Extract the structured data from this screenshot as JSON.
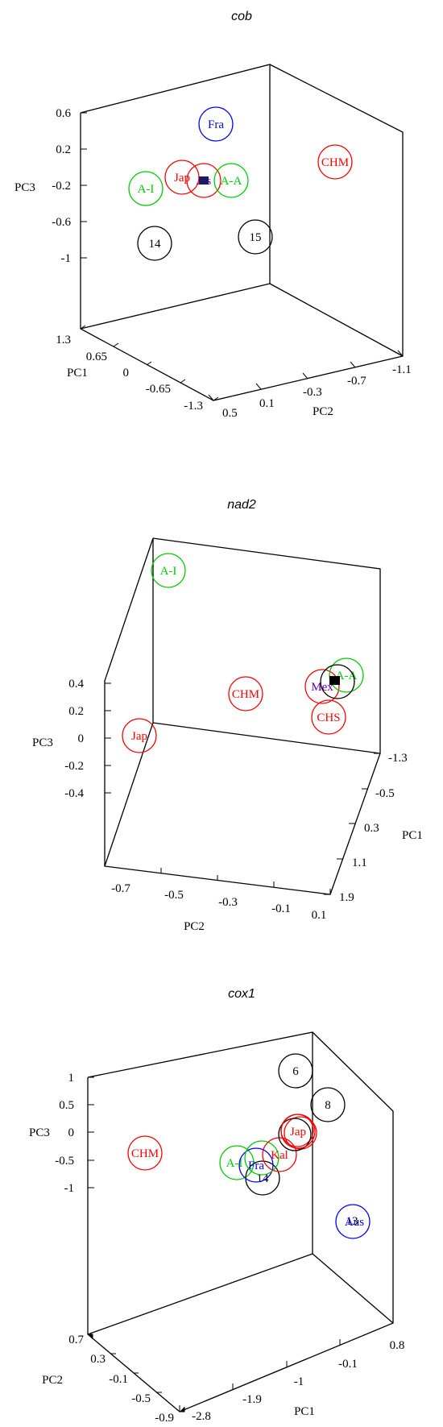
{
  "chart_data": [
    {
      "type": "scatter",
      "title": "cob",
      "xlabel": "PC1",
      "ylabel": "PC2",
      "zlabel": "PC3",
      "axes": {
        "x": {
          "ticks": [
            "1.3",
            "0.65",
            "0",
            "-0.65",
            "-1.3"
          ]
        },
        "y": {
          "ticks": [
            "0.5",
            "0.1",
            "-0.3",
            "-0.7",
            "-1.1"
          ]
        },
        "z": {
          "ticks": [
            "0.6",
            "0.2",
            "-0.2",
            "-0.6",
            "-1"
          ]
        }
      },
      "points": [
        {
          "label": "Fra",
          "color": "#0000ff"
        },
        {
          "label": "CHM",
          "color": "#ff0000"
        },
        {
          "label": "A-I",
          "color": "#00cc00"
        },
        {
          "label": "Jap",
          "color": "#ff0000"
        },
        {
          "label": "Jas",
          "color": "#ff0000"
        },
        {
          "label": "A-A",
          "color": "#00cc00"
        },
        {
          "label": "14",
          "color": "#000000"
        },
        {
          "label": "15",
          "color": "#000000"
        }
      ]
    },
    {
      "type": "scatter",
      "title": "nad2",
      "xlabel": "PC1",
      "ylabel": "PC2",
      "zlabel": "PC3",
      "axes": {
        "x": {
          "ticks": [
            "-1.3",
            "-0.5",
            "0.3",
            "1.1",
            "1.9"
          ]
        },
        "y": {
          "ticks": [
            "-0.7",
            "-0.5",
            "-0.3",
            "-0.1",
            "0.1"
          ]
        },
        "z": {
          "ticks": [
            "0.4",
            "0.2",
            "0",
            "-0.2",
            "-0.4"
          ]
        }
      },
      "points": [
        {
          "label": "A-I",
          "color": "#00cc00"
        },
        {
          "label": "CHM",
          "color": "#ff0000"
        },
        {
          "label": "Jap",
          "color": "#ff0000"
        },
        {
          "label": "Mex",
          "color": "#ff0000"
        },
        {
          "label": "A-A",
          "color": "#00cc00"
        },
        {
          "label": "CHS",
          "color": "#ff0000"
        }
      ]
    },
    {
      "type": "scatter",
      "title": "cox1",
      "xlabel": "PC1",
      "ylabel": "PC2",
      "zlabel": "PC3",
      "axes": {
        "x": {
          "ticks": [
            "-2.8",
            "-1.9",
            "-1",
            "-0.1",
            "0.8"
          ]
        },
        "y": {
          "ticks": [
            "0.7",
            "0.3",
            "-0.1",
            "-0.5",
            "-0.9"
          ]
        },
        "z": {
          "ticks": [
            "1",
            "0.5",
            "0",
            "-0.5",
            "-1"
          ]
        }
      },
      "points": [
        {
          "label": "6",
          "color": "#000000"
        },
        {
          "label": "8",
          "color": "#000000"
        },
        {
          "label": "CHM",
          "color": "#ff0000"
        },
        {
          "label": "A-I",
          "color": "#00cc00"
        },
        {
          "label": "Fra",
          "color": "#0000ff"
        },
        {
          "label": "Kal",
          "color": "#ff0000"
        },
        {
          "label": "14",
          "color": "#000000"
        },
        {
          "label": "Jap",
          "color": "#ff0000"
        },
        {
          "label": "13",
          "color": "#000000"
        },
        {
          "label": "Aus",
          "color": "#0000ff"
        }
      ]
    }
  ]
}
